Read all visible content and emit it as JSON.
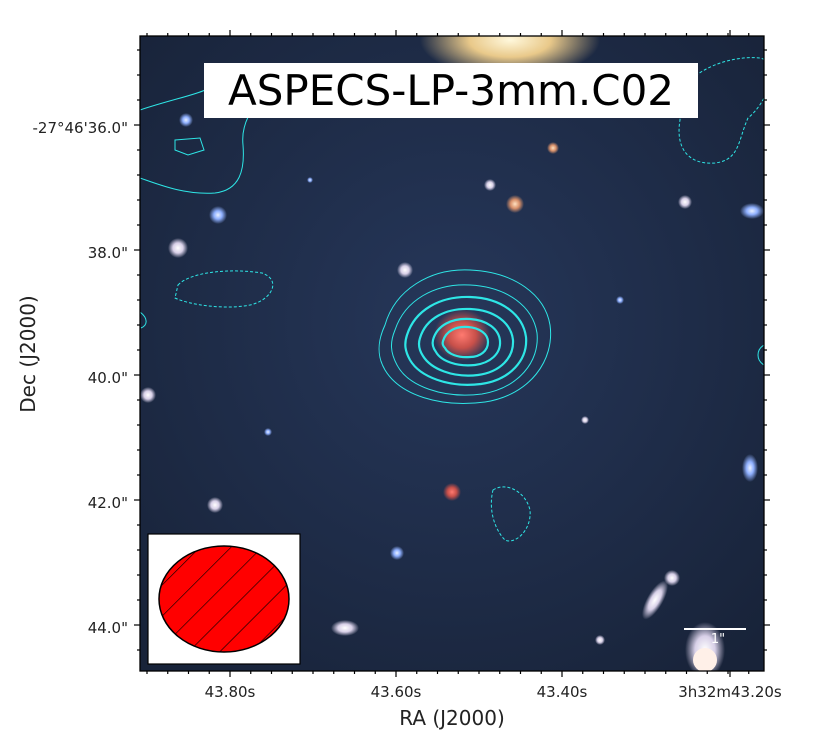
{
  "figure": {
    "title": "ASPECS-LP-3mm.C02",
    "xlabel": "RA (J2000)",
    "ylabel": "Dec (J2000)",
    "x_tick_labels": [
      "43.80s",
      "43.60s",
      "43.40s",
      "3h32m43.20s"
    ],
    "y_tick_labels": [
      "-27°46'36.0\"",
      "38.0\"",
      "40.0\"",
      "42.0\"",
      "44.0\""
    ],
    "scalebar_label": "1\"",
    "contour_color": "#2ee6e6",
    "beam_fill_color": "#ff0000",
    "background_color": "#1c2a44"
  }
}
